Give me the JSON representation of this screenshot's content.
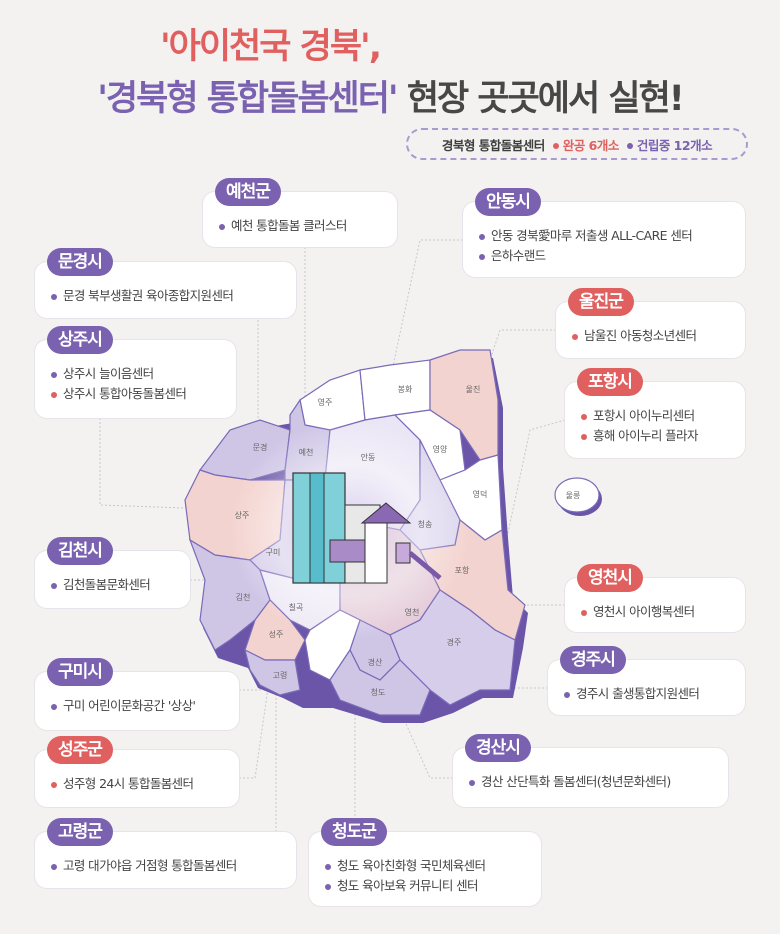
{
  "title": {
    "line1": "'아이천국 경북',",
    "line2_highlight": "'경북형 통합돌봄센터'",
    "line2_rest": " 현장 곳곳에서 실현!"
  },
  "legend": {
    "label": "경북형 통합돌봄센터",
    "completed": "완공 6개소",
    "under_construction": "건립중 12개소",
    "completed_color": "#e0605f",
    "construction_color": "#7a62b0"
  },
  "regions": [
    {
      "name": "예천군",
      "status": "construction",
      "items": [
        {
          "text": "예천 통합돌봄 클러스터",
          "status": "construction"
        }
      ]
    },
    {
      "name": "안동시",
      "status": "construction",
      "items": [
        {
          "text": "안동 경북愛마루 저출생 ALL-CARE 센터",
          "status": "construction"
        },
        {
          "text": "은하수랜드",
          "status": "construction"
        }
      ]
    },
    {
      "name": "문경시",
      "status": "construction",
      "items": [
        {
          "text": "문경 북부생활권 육아종합지원센터",
          "status": "construction"
        }
      ]
    },
    {
      "name": "울진군",
      "status": "completed",
      "items": [
        {
          "text": "남울진 아동청소년센터",
          "status": "completed"
        }
      ]
    },
    {
      "name": "상주시",
      "status": "construction",
      "items": [
        {
          "text": "상주시 늘이음센터",
          "status": "construction"
        },
        {
          "text": "상주시 통합아동돌봄센터",
          "status": "completed"
        }
      ]
    },
    {
      "name": "포항시",
      "status": "completed",
      "items": [
        {
          "text": "포항시 아이누리센터",
          "status": "completed"
        },
        {
          "text": "흥해 아이누리 플라자",
          "status": "completed"
        }
      ]
    },
    {
      "name": "김천시",
      "status": "construction",
      "items": [
        {
          "text": "김천돌봄문화센터",
          "status": "construction"
        }
      ]
    },
    {
      "name": "영천시",
      "status": "completed",
      "items": [
        {
          "text": "영천시 아이행복센터",
          "status": "completed"
        }
      ]
    },
    {
      "name": "경주시",
      "status": "construction",
      "items": [
        {
          "text": "경주시 출생통합지원센터",
          "status": "construction"
        }
      ]
    },
    {
      "name": "구미시",
      "status": "construction",
      "items": [
        {
          "text": "구미 어린이문화공간 '상상'",
          "status": "construction"
        }
      ]
    },
    {
      "name": "경산시",
      "status": "construction",
      "items": [
        {
          "text": "경산 산단특화 돌봄센터(청년문화센터)",
          "status": "construction"
        }
      ]
    },
    {
      "name": "성주군",
      "status": "completed",
      "items": [
        {
          "text": "성주형 24시 통합돌봄센터",
          "status": "completed"
        }
      ]
    },
    {
      "name": "고령군",
      "status": "construction",
      "items": [
        {
          "text": "고령 대가야읍 거점형 통합돌봄센터",
          "status": "construction"
        }
      ]
    },
    {
      "name": "청도군",
      "status": "construction",
      "items": [
        {
          "text": "청도 육아친화형 국민체육센터",
          "status": "construction"
        },
        {
          "text": "청도 육아보육 커뮤니티 센터",
          "status": "construction"
        }
      ]
    }
  ],
  "map_labels": [
    "영주",
    "봉화",
    "울진",
    "문경",
    "예천",
    "안동",
    "영양",
    "상주",
    "영덕",
    "울릉",
    "청송",
    "구미",
    "포항",
    "김천",
    "칠곡",
    "영천",
    "성주",
    "경주",
    "경산",
    "고령",
    "청도"
  ]
}
